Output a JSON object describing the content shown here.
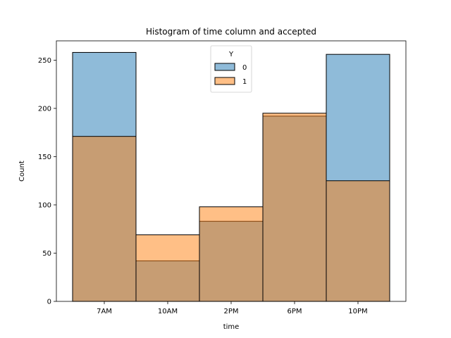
{
  "chart_data": {
    "type": "bar",
    "title": "Histogram of time column and accepted",
    "xlabel": "time",
    "ylabel": "Count",
    "categories": [
      "7AM",
      "10AM",
      "2PM",
      "6PM",
      "10PM"
    ],
    "ylim": [
      0,
      270
    ],
    "yticks": [
      0,
      50,
      100,
      150,
      200,
      250
    ],
    "legend": {
      "title": "Y",
      "placement": "top-center"
    },
    "overlay": true,
    "series": [
      {
        "name": "0",
        "values": [
          258,
          42,
          83,
          192,
          256
        ],
        "color": "#1f77b4",
        "alpha": 0.5
      },
      {
        "name": "1",
        "values": [
          171,
          69,
          98,
          195,
          125
        ],
        "color": "#ff7f0e",
        "alpha": 0.5
      }
    ],
    "grid": false
  }
}
